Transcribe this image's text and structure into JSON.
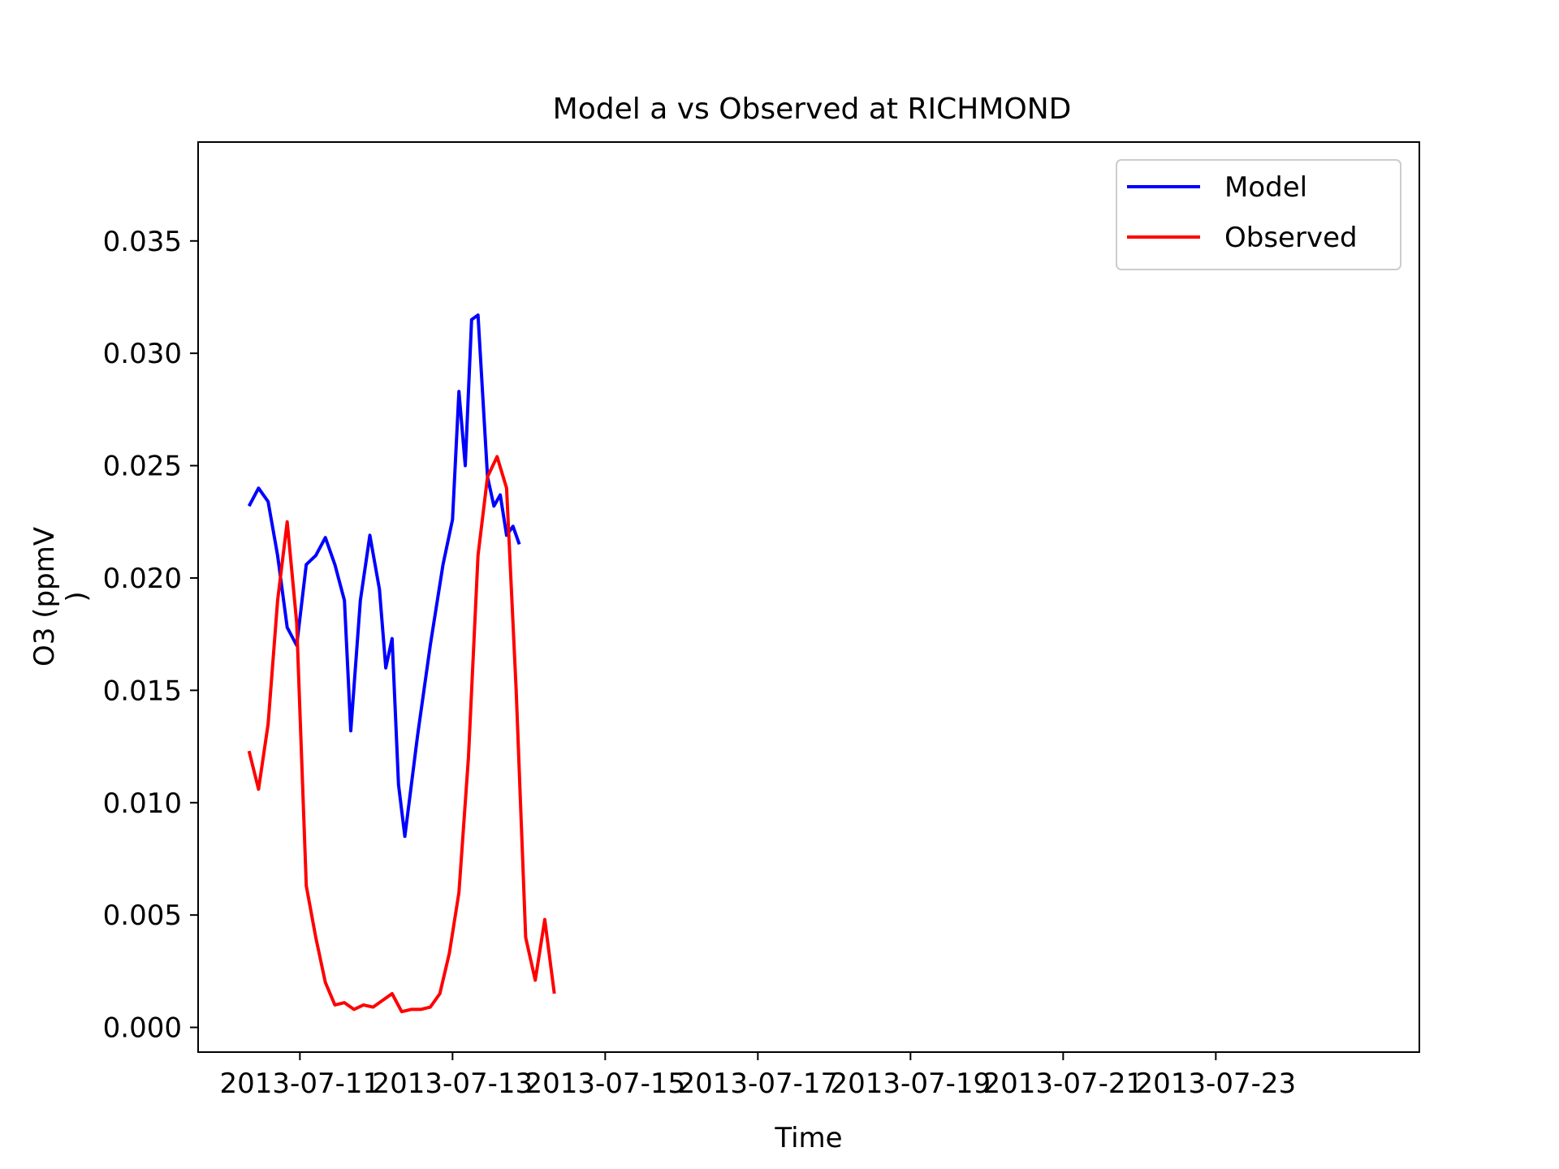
{
  "chart_data": {
    "type": "line",
    "title": "Model a vs Observed at RICHMOND",
    "xlabel": "Time",
    "ylabel": "O3 (ppmV\n)",
    "ylim": [
      -0.0011,
      0.0394
    ],
    "xlim": [
      "2013-07-09 16:00",
      "2013-07-25 16:00"
    ],
    "x_ticks": [
      "2013-07-11",
      "2013-07-13",
      "2013-07-15",
      "2013-07-17",
      "2013-07-19",
      "2013-07-21",
      "2013-07-23"
    ],
    "y_ticks": [
      "0.000",
      "0.005",
      "0.010",
      "0.015",
      "0.020",
      "0.025",
      "0.030",
      "0.035"
    ],
    "legend_position": "top-right",
    "grid": false,
    "series": [
      {
        "name": "Model",
        "color": "#0000ff",
        "points": [
          [
            "2013-07-10 08:00",
            0.0232
          ],
          [
            "2013-07-10 11:00",
            0.024
          ],
          [
            "2013-07-10 14:00",
            0.0234
          ],
          [
            "2013-07-10 17:00",
            0.021
          ],
          [
            "2013-07-10 20:00",
            0.0178
          ],
          [
            "2013-07-10 23:00",
            0.017
          ],
          [
            "2013-07-11 02:00",
            0.0206
          ],
          [
            "2013-07-11 05:00",
            0.021
          ],
          [
            "2013-07-11 08:00",
            0.0218
          ],
          [
            "2013-07-11 11:00",
            0.0206
          ],
          [
            "2013-07-11 14:00",
            0.019
          ],
          [
            "2013-07-11 16:00",
            0.0132
          ],
          [
            "2013-07-11 19:00",
            0.019
          ],
          [
            "2013-07-11 22:00",
            0.0219
          ],
          [
            "2013-07-12 01:00",
            0.0195
          ],
          [
            "2013-07-12 03:00",
            0.016
          ],
          [
            "2013-07-12 05:00",
            0.0173
          ],
          [
            "2013-07-12 07:00",
            0.0108
          ],
          [
            "2013-07-12 09:00",
            0.0085
          ],
          [
            "2013-07-12 13:00",
            0.013
          ],
          [
            "2013-07-12 17:00",
            0.017
          ],
          [
            "2013-07-12 21:00",
            0.0206
          ],
          [
            "2013-07-13 00:00",
            0.0226
          ],
          [
            "2013-07-13 02:00",
            0.0283
          ],
          [
            "2013-07-13 04:00",
            0.025
          ],
          [
            "2013-07-13 06:00",
            0.0315
          ],
          [
            "2013-07-13 08:00",
            0.0317
          ],
          [
            "2013-07-13 11:00",
            0.0245
          ],
          [
            "2013-07-13 13:00",
            0.0232
          ],
          [
            "2013-07-13 15:00",
            0.0237
          ],
          [
            "2013-07-13 17:00",
            0.0219
          ],
          [
            "2013-07-13 19:00",
            0.0223
          ],
          [
            "2013-07-13 21:00",
            0.0215
          ]
        ]
      },
      {
        "name": "Observed",
        "color": "#ff0000",
        "points": [
          [
            "2013-07-10 08:00",
            0.0123
          ],
          [
            "2013-07-10 11:00",
            0.0106
          ],
          [
            "2013-07-10 14:00",
            0.0135
          ],
          [
            "2013-07-10 17:00",
            0.019
          ],
          [
            "2013-07-10 20:00",
            0.0225
          ],
          [
            "2013-07-10 23:00",
            0.018
          ],
          [
            "2013-07-11 02:00",
            0.0063
          ],
          [
            "2013-07-11 05:00",
            0.004
          ],
          [
            "2013-07-11 08:00",
            0.002
          ],
          [
            "2013-07-11 11:00",
            0.001
          ],
          [
            "2013-07-11 14:00",
            0.0011
          ],
          [
            "2013-07-11 17:00",
            0.0008
          ],
          [
            "2013-07-11 20:00",
            0.001
          ],
          [
            "2013-07-11 23:00",
            0.0009
          ],
          [
            "2013-07-12 02:00",
            0.0012
          ],
          [
            "2013-07-12 05:00",
            0.0015
          ],
          [
            "2013-07-12 08:00",
            0.0007
          ],
          [
            "2013-07-12 11:00",
            0.0008
          ],
          [
            "2013-07-12 14:00",
            0.0008
          ],
          [
            "2013-07-12 17:00",
            0.0009
          ],
          [
            "2013-07-12 20:00",
            0.0015
          ],
          [
            "2013-07-12 23:00",
            0.0033
          ],
          [
            "2013-07-13 02:00",
            0.006
          ],
          [
            "2013-07-13 05:00",
            0.012
          ],
          [
            "2013-07-13 08:00",
            0.021
          ],
          [
            "2013-07-13 11:00",
            0.0245
          ],
          [
            "2013-07-13 14:00",
            0.0254
          ],
          [
            "2013-07-13 17:00",
            0.024
          ],
          [
            "2013-07-13 20:00",
            0.015
          ],
          [
            "2013-07-13 23:00",
            0.004
          ],
          [
            "2013-07-14 02:00",
            0.0021
          ],
          [
            "2013-07-14 05:00",
            0.0048
          ],
          [
            "2013-07-14 08:00",
            0.0015
          ]
        ]
      }
    ]
  }
}
